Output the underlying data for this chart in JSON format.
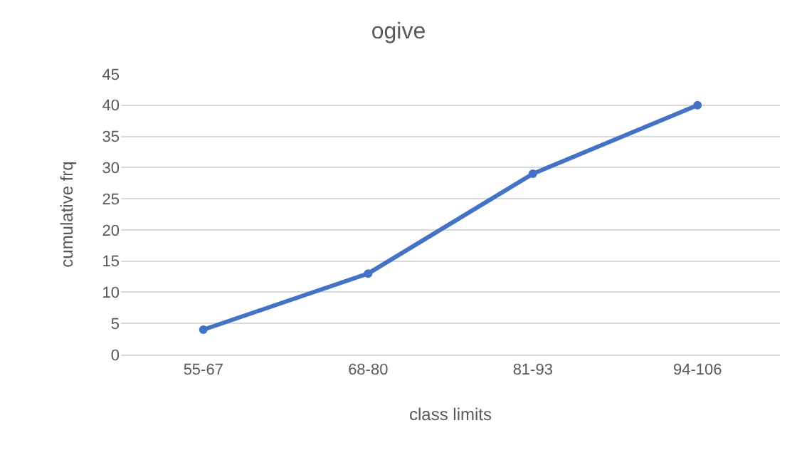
{
  "chart_data": {
    "type": "line",
    "title": "ogive",
    "xlabel": "class limits",
    "ylabel": "cumulative frq",
    "categories": [
      "55-67",
      "68-80",
      "81-93",
      "94-106"
    ],
    "series": [
      {
        "color": "#4472c4",
        "values": [
          4,
          13,
          29,
          40
        ]
      }
    ],
    "ylim": [
      0,
      45
    ],
    "yticks": [
      0,
      5,
      10,
      15,
      20,
      25,
      30,
      35,
      40,
      45
    ],
    "grid": "y",
    "marker": "circle",
    "line_style": "solid"
  }
}
